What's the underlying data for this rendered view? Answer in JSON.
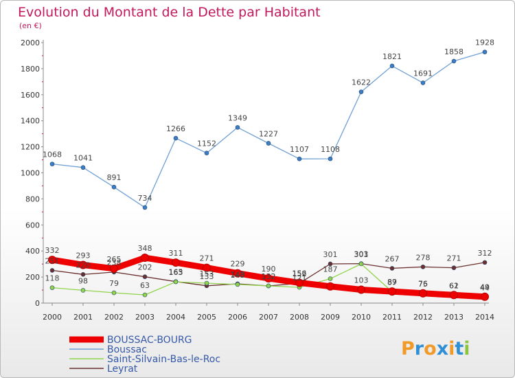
{
  "chart_data": {
    "type": "line",
    "title": "Evolution du Montant de la Dette par Habitant",
    "subtitle": "(en €)",
    "x": [
      "2000",
      "2001",
      "2002",
      "2003",
      "2004",
      "2005",
      "2006",
      "2007",
      "2008",
      "2009",
      "2010",
      "2011",
      "2012",
      "2013",
      "2014"
    ],
    "ylim": [
      0,
      2000
    ],
    "yticks": [
      0,
      200,
      400,
      600,
      800,
      1000,
      1200,
      1400,
      1600,
      1800,
      2000
    ],
    "grid": false,
    "legend_position": "bottom-left",
    "series": [
      {
        "name": "BOUSSAC-BOURG",
        "color": "#ee0000",
        "values": [
          332,
          293,
          265,
          348,
          311,
          271,
          229,
          190,
          156,
          128,
          103,
          89,
          75,
          62,
          49
        ],
        "labels": [
          "332",
          "293",
          "265",
          "348",
          "311",
          "271",
          "229",
          "190",
          "156",
          "",
          "103",
          "89",
          "75",
          "62",
          "49"
        ]
      },
      {
        "name": "Boussac",
        "color": "#6f9fd4",
        "values": [
          1068,
          1041,
          891,
          734,
          1266,
          1152,
          1349,
          1227,
          1107,
          1108,
          1622,
          1821,
          1691,
          1858,
          1928
        ],
        "labels": [
          "1068",
          "1041",
          "891",
          "734",
          "1266",
          "1152",
          "1349",
          "1227",
          "1107",
          "1108",
          "1622",
          "1821",
          "1691",
          "1858",
          "1928"
        ]
      },
      {
        "name": "Saint-Silvain-Bas-le-Roc",
        "color": "#8fd44a",
        "values": [
          118,
          98,
          79,
          63,
          163,
          153,
          143,
          132,
          121,
          187,
          301,
          87,
          76,
          61,
          44
        ],
        "labels": [
          "118",
          "98",
          "79",
          "63",
          "163",
          "153",
          "143",
          "132",
          "121",
          "187",
          "301",
          "87",
          "76",
          "61",
          "44"
        ]
      },
      {
        "name": "Leyrat",
        "color": "#6b2f2f",
        "values": [
          251,
          220,
          238,
          202,
          165,
          133,
          148,
          132,
          152,
          301,
          303,
          267,
          278,
          271,
          312
        ],
        "labels": [
          "251",
          "220",
          "238",
          "202",
          "165",
          "133",
          "148",
          "132",
          "152",
          "301",
          "303",
          "267",
          "278",
          "271",
          "312"
        ]
      }
    ]
  },
  "branding": {
    "text": "Proxiti"
  }
}
